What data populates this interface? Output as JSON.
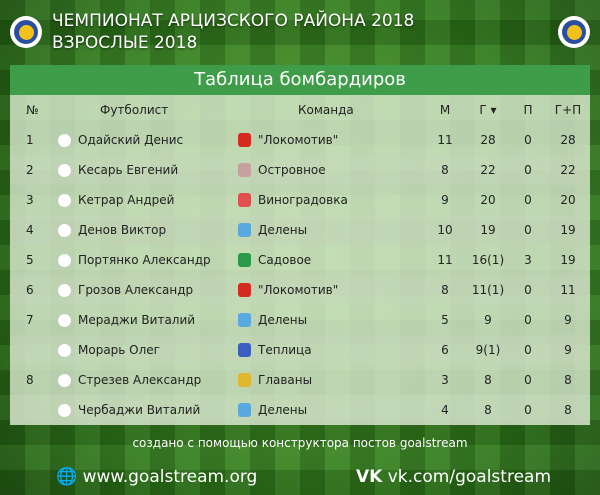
{
  "header": {
    "line1": "ЧЕМПИОНАТ АРЦИЗСКОГО РАЙОНА 2018",
    "line2": "ВЗРОСЛЫЕ 2018"
  },
  "table": {
    "title": "Таблица бомбардиров",
    "columns": {
      "num": "№",
      "player": "Футболист",
      "team": "Команда",
      "m": "М",
      "g": "Г ▾",
      "a": "П",
      "ga": "Г+П"
    },
    "sorted_by": "Г",
    "rows": [
      {
        "num": "1",
        "player": "Одайский Денис",
        "team": "\"Локомотив\"",
        "icon": "#d42a1f",
        "m": "11",
        "g": "28",
        "a": "0",
        "ga": "28"
      },
      {
        "num": "2",
        "player": "Кесарь Евгений",
        "team": "Островное",
        "icon": "#c7a0a0",
        "m": "8",
        "g": "22",
        "a": "0",
        "ga": "22"
      },
      {
        "num": "3",
        "player": "Кетрар Андрей",
        "team": "Виноградовка",
        "icon": "#e05050",
        "m": "9",
        "g": "20",
        "a": "0",
        "ga": "20"
      },
      {
        "num": "4",
        "player": "Денов Виктор",
        "team": "Делены",
        "icon": "#5aa8e0",
        "m": "10",
        "g": "19",
        "a": "0",
        "ga": "19"
      },
      {
        "num": "5",
        "player": "Портянко Александр",
        "team": "Садовое",
        "icon": "#2a9a4a",
        "m": "11",
        "g": "16(1)",
        "a": "3",
        "ga": "19"
      },
      {
        "num": "6",
        "player": "Грозов Александр",
        "team": "\"Локомотив\"",
        "icon": "#d42a1f",
        "m": "8",
        "g": "11(1)",
        "a": "0",
        "ga": "11"
      },
      {
        "num": "7",
        "player": "Мераджи Виталий",
        "team": "Делены",
        "icon": "#5aa8e0",
        "m": "5",
        "g": "9",
        "a": "0",
        "ga": "9"
      },
      {
        "num": "",
        "player": "Морарь Олег",
        "team": "Теплица",
        "icon": "#3a5fc0",
        "m": "6",
        "g": "9(1)",
        "a": "0",
        "ga": "9"
      },
      {
        "num": "8",
        "player": "Стрезев Александр",
        "team": "Главаны",
        "icon": "#e0b830",
        "m": "3",
        "g": "8",
        "a": "0",
        "ga": "8"
      },
      {
        "num": "",
        "player": "Чербаджи Виталий",
        "team": "Делены",
        "icon": "#5aa8e0",
        "m": "4",
        "g": "8",
        "a": "0",
        "ga": "8"
      }
    ]
  },
  "footer": {
    "credit": "создано с помощью конструктора постов goalstream",
    "site": "www.goalstream.org",
    "vk": "vk.com/goalstream"
  },
  "colors": {
    "table_header": "#3f9c48",
    "logo_blue": "#2a4fa0",
    "logo_yellow": "#f2c21b"
  }
}
